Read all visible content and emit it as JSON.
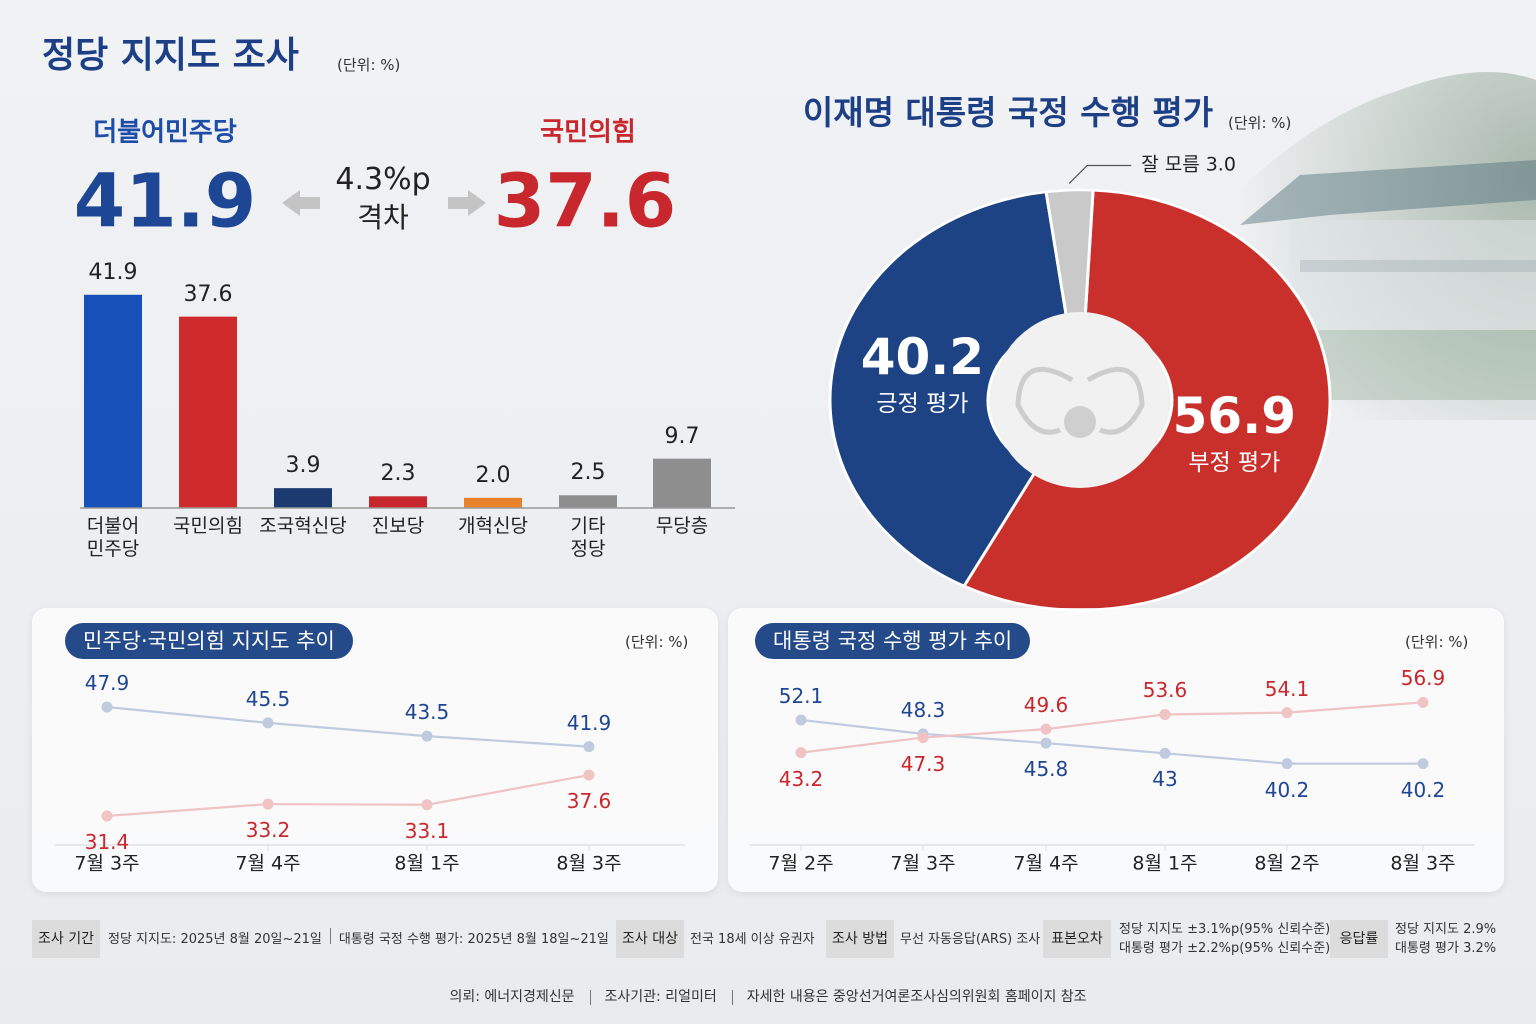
{
  "title": "정당 지지도 조사",
  "unit": "(단위: %)",
  "headline": {
    "left_party": "더불어민주당",
    "left_value": "41.9",
    "gap": "4.3%p",
    "gap_label": "격차",
    "right_party": "국민의힘",
    "right_value": "37.6"
  },
  "chart_data": [
    {
      "type": "bar",
      "categories": [
        "더불어\n민주당",
        "국민의힘",
        "조국혁신당",
        "진보당",
        "개혁신당",
        "기타\n정당",
        "무당층"
      ],
      "values": [
        41.9,
        37.6,
        3.9,
        2.3,
        2.0,
        2.5,
        9.7
      ],
      "value_labels": [
        "41.9",
        "37.6",
        "3.9",
        "2.3",
        "2.0",
        "2.5",
        "9.7"
      ],
      "colors": [
        "#1650b8",
        "#cf2a2c",
        "#1b3a70",
        "#c8282d",
        "#e8832c",
        "#8e8e8e",
        "#8e8e8e"
      ],
      "ylim": [
        0,
        45
      ]
    },
    {
      "type": "donut",
      "title": "이재명 대통령 국정 수행 평가",
      "unit": "(단위: %)",
      "categories": [
        "부정 평가",
        "긍정 평가",
        "잘 모름"
      ],
      "values": [
        56.9,
        40.2,
        3.0
      ],
      "value_labels": [
        "56.9",
        "40.2",
        "3.0"
      ],
      "colors": [
        "#c9302c",
        "#1d4385",
        "#c9c9c9"
      ]
    },
    {
      "type": "line",
      "title": "민주당·국민의힘 지지도 추이",
      "unit": "(단위: %)",
      "categories": [
        "7월 3주",
        "7월 4주",
        "8월 1주",
        "8월 3주"
      ],
      "series": [
        {
          "color": "#1f4690",
          "values": [
            47.9,
            45.5,
            43.5,
            41.9
          ]
        },
        {
          "color": "#c8282d",
          "values": [
            31.4,
            33.2,
            33.1,
            37.6
          ]
        }
      ],
      "ylim": [
        27,
        52
      ]
    },
    {
      "type": "line",
      "title": "대통령 국정 수행 평가 추이",
      "unit": "(단위: %)",
      "categories": [
        "7월 2주",
        "7월 3주",
        "7월 4주",
        "8월 1주",
        "8월 2주",
        "8월 3주"
      ],
      "series": [
        {
          "color": "#1f4690",
          "values": [
            52.1,
            48.3,
            45.8,
            43.0,
            40.2,
            40.2
          ]
        },
        {
          "color": "#c8282d",
          "values": [
            43.2,
            47.3,
            49.6,
            53.6,
            54.1,
            56.9
          ]
        }
      ],
      "ylim": [
        18,
        63
      ]
    }
  ],
  "footer": {
    "items": [
      {
        "label": "조사 기간",
        "lines": [
          "정당 지지도: 2025년 8월 20일~21일",
          "대통령 국정 수행 평가: 2025년 8월 18일~21일"
        ]
      },
      {
        "label": "조사 대상",
        "lines": [
          "전국 18세 이상 유권자"
        ]
      },
      {
        "label": "조사 방법",
        "lines": [
          "무선 자동응답(ARS) 조사"
        ]
      },
      {
        "label": "표본오차",
        "lines": [
          "정당 지지도 ±3.1%p(95% 신뢰수준)",
          "대통령 평가 ±2.2%p(95% 신뢰수준)"
        ]
      },
      {
        "label": "응답률",
        "lines": [
          "정당 지지도 2.9%",
          "대통령 평가 3.2%"
        ]
      }
    ],
    "credits": [
      "의뢰: 에너지경제신문",
      "조사기관: 리얼미터",
      "자세한 내용은 중앙선거여론조사심의위원회 홈페이지 참조"
    ]
  }
}
